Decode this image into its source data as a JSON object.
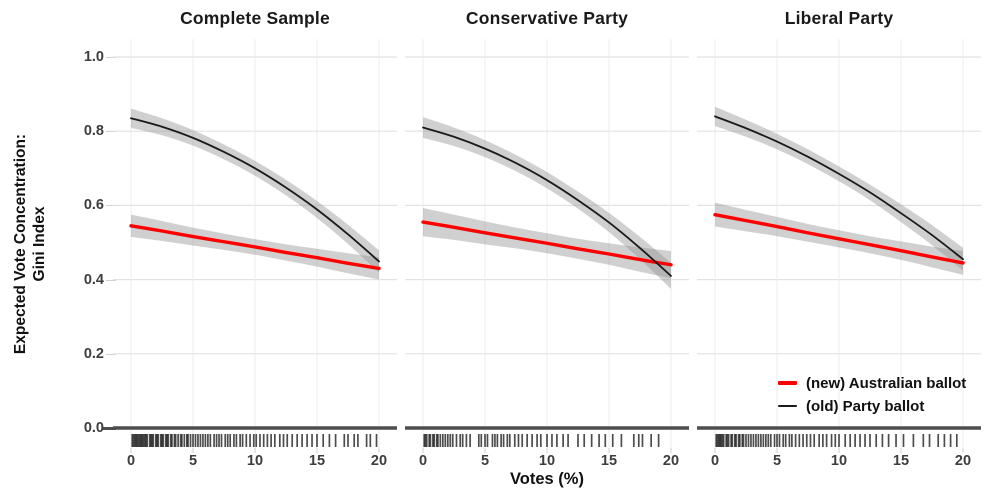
{
  "figure": {
    "background": "#ffffff",
    "y_axis_title_line1": "Expected Vote Concentration:",
    "y_axis_title_line2": "Gini Index",
    "x_axis_title": "Votes (%)",
    "y_tick_labels": [
      "0.0",
      "0.2",
      "0.4",
      "0.6",
      "0.8",
      "1.0"
    ],
    "x_tick_labels": [
      "0",
      "5",
      "10",
      "15",
      "20"
    ],
    "colors": {
      "grid_h": "#e2e2e2",
      "grid_v": "#ececec",
      "ribbon": "#8f8f8f",
      "zero_line": "#4d4d4d",
      "rug": "#111111",
      "tick_text": "#3d3d3d",
      "axis_tick": "#cfcfcf",
      "new_ballot": "#ff0000",
      "old_ballot": "#1a1a1a"
    },
    "legend": {
      "items": [
        {
          "label": "(new) Australian ballot",
          "color": "#ff0000",
          "weight": 4
        },
        {
          "label": "(old) Party ballot",
          "color": "#1a1a1a",
          "weight": 2
        }
      ]
    }
  },
  "chart_data": [
    {
      "type": "line",
      "title": "Complete Sample",
      "xlim": [
        0,
        20
      ],
      "ylim": [
        0,
        1
      ],
      "x_ticks": [
        0,
        5,
        10,
        15,
        20
      ],
      "y_ticks": [
        0,
        0.2,
        0.4,
        0.6,
        0.8,
        1.0
      ],
      "x": [
        0,
        2.5,
        5,
        7.5,
        10,
        12.5,
        15,
        17.5,
        20
      ],
      "series": [
        {
          "name": "(old) Party ballot",
          "color": "#1a1a1a",
          "width": 1.8,
          "values": [
            0.835,
            0.812,
            0.782,
            0.744,
            0.7,
            0.648,
            0.589,
            0.522,
            0.449
          ],
          "band": [
            0.026,
            0.023,
            0.021,
            0.02,
            0.02,
            0.021,
            0.023,
            0.026,
            0.03
          ]
        },
        {
          "name": "(new) Australian ballot",
          "color": "#ff0000",
          "width": 3.4,
          "values": [
            0.545,
            0.531,
            0.516,
            0.502,
            0.488,
            0.473,
            0.459,
            0.444,
            0.43
          ],
          "band": [
            0.03,
            0.027,
            0.024,
            0.022,
            0.021,
            0.022,
            0.024,
            0.027,
            0.03
          ]
        }
      ],
      "rug": [
        0.1,
        0.2,
        0.3,
        0.4,
        0.5,
        0.6,
        0.7,
        0.8,
        0.9,
        1.0,
        1.1,
        1.2,
        1.3,
        1.5,
        1.6,
        1.7,
        1.8,
        2.0,
        2.1,
        2.2,
        2.4,
        2.5,
        2.6,
        2.8,
        2.9,
        3.0,
        3.2,
        3.3,
        3.5,
        3.6,
        3.8,
        4.0,
        4.1,
        4.3,
        4.5,
        4.6,
        4.8,
        5.0,
        5.2,
        5.4,
        5.6,
        5.8,
        6.0,
        6.2,
        6.4,
        6.7,
        6.9,
        7.1,
        7.3,
        7.6,
        7.8,
        8.0,
        8.3,
        8.5,
        8.8,
        9.0,
        9.3,
        9.6,
        9.9,
        10.1,
        10.4,
        10.7,
        11.0,
        11.3,
        11.6,
        12.0,
        12.3,
        12.6,
        13.0,
        13.4,
        13.8,
        14.2,
        14.6,
        15.0,
        15.5,
        16.0,
        16.5,
        17.2,
        17.5,
        18.0,
        18.3,
        19.0,
        19.3,
        19.8
      ]
    },
    {
      "type": "line",
      "title": "Conservative Party",
      "xlim": [
        0,
        20
      ],
      "ylim": [
        0,
        1
      ],
      "x_ticks": [
        0,
        5,
        10,
        15,
        20
      ],
      "y_ticks": [
        0,
        0.2,
        0.4,
        0.6,
        0.8,
        1.0
      ],
      "x": [
        0,
        2.5,
        5,
        7.5,
        10,
        12.5,
        15,
        17.5,
        20
      ],
      "series": [
        {
          "name": "(old) Party ballot",
          "color": "#1a1a1a",
          "width": 1.8,
          "values": [
            0.81,
            0.785,
            0.753,
            0.714,
            0.668,
            0.614,
            0.554,
            0.485,
            0.41
          ],
          "band": [
            0.028,
            0.025,
            0.023,
            0.022,
            0.022,
            0.023,
            0.026,
            0.03,
            0.035
          ]
        },
        {
          "name": "(new) Australian ballot",
          "color": "#ff0000",
          "width": 3.4,
          "values": [
            0.555,
            0.541,
            0.526,
            0.512,
            0.498,
            0.483,
            0.469,
            0.454,
            0.44
          ],
          "band": [
            0.038,
            0.034,
            0.031,
            0.028,
            0.027,
            0.027,
            0.029,
            0.033,
            0.037
          ]
        }
      ],
      "rug": [
        0.1,
        0.2,
        0.3,
        0.5,
        0.6,
        0.8,
        0.9,
        1.1,
        1.2,
        1.4,
        1.6,
        1.8,
        2.0,
        2.2,
        2.4,
        2.7,
        3.0,
        3.2,
        3.5,
        3.8,
        4.5,
        4.7,
        5.0,
        5.2,
        5.6,
        5.8,
        6.0,
        6.3,
        6.5,
        6.8,
        7.0,
        7.4,
        7.7,
        8.0,
        8.4,
        8.8,
        9.2,
        9.5,
        10.0,
        10.4,
        10.8,
        11.3,
        11.7,
        12.5,
        13.0,
        13.6,
        14.2,
        14.7,
        15.3,
        16.0,
        17.0,
        17.4,
        17.7,
        18.4,
        19.0
      ]
    },
    {
      "type": "line",
      "title": "Liberal Party",
      "xlim": [
        0,
        20
      ],
      "ylim": [
        0,
        1
      ],
      "x_ticks": [
        0,
        5,
        10,
        15,
        20
      ],
      "y_ticks": [
        0,
        0.2,
        0.4,
        0.6,
        0.8,
        1.0
      ],
      "x": [
        0,
        2.5,
        5,
        7.5,
        10,
        12.5,
        15,
        17.5,
        20
      ],
      "series": [
        {
          "name": "(old) Party ballot",
          "color": "#1a1a1a",
          "width": 1.8,
          "values": [
            0.84,
            0.808,
            0.772,
            0.731,
            0.685,
            0.635,
            0.579,
            0.52,
            0.455
          ],
          "band": [
            0.026,
            0.023,
            0.021,
            0.02,
            0.02,
            0.021,
            0.024,
            0.027,
            0.031
          ]
        },
        {
          "name": "(new) Australian ballot",
          "color": "#ff0000",
          "width": 3.4,
          "values": [
            0.575,
            0.559,
            0.543,
            0.526,
            0.51,
            0.494,
            0.478,
            0.461,
            0.445
          ],
          "band": [
            0.032,
            0.029,
            0.026,
            0.024,
            0.023,
            0.023,
            0.025,
            0.028,
            0.032
          ]
        }
      ],
      "rug": [
        0.1,
        0.2,
        0.3,
        0.4,
        0.5,
        0.6,
        0.7,
        0.9,
        1.0,
        1.1,
        1.3,
        1.4,
        1.6,
        1.7,
        1.9,
        2.0,
        2.2,
        2.3,
        2.5,
        2.7,
        2.9,
        3.1,
        3.3,
        3.5,
        3.7,
        3.9,
        4.1,
        4.3,
        4.5,
        4.8,
        5.0,
        5.2,
        5.5,
        5.7,
        6.0,
        6.2,
        6.5,
        6.8,
        7.1,
        7.4,
        7.7,
        8.0,
        8.4,
        8.7,
        9.0,
        9.4,
        9.7,
        10.0,
        10.5,
        10.9,
        11.3,
        11.7,
        12.1,
        12.5,
        13.0,
        13.5,
        14.0,
        14.6,
        15.2,
        16.0,
        16.8,
        17.3,
        18.0,
        18.5,
        19.0,
        19.5
      ]
    }
  ]
}
